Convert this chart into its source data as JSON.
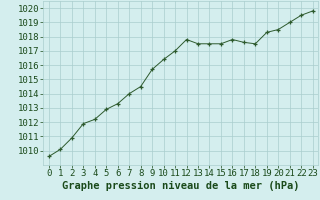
{
  "x": [
    0,
    1,
    2,
    3,
    4,
    5,
    6,
    7,
    8,
    9,
    10,
    11,
    12,
    13,
    14,
    15,
    16,
    17,
    18,
    19,
    20,
    21,
    22,
    23
  ],
  "y": [
    1009.6,
    1010.1,
    1010.9,
    1011.9,
    1012.2,
    1012.9,
    1013.3,
    1014.0,
    1014.5,
    1015.7,
    1016.4,
    1017.0,
    1017.8,
    1017.5,
    1017.5,
    1017.5,
    1017.8,
    1017.6,
    1017.5,
    1018.3,
    1018.5,
    1019.0,
    1019.5,
    1019.8
  ],
  "line_color": "#2d5a2d",
  "marker": "+",
  "background_color": "#d4eeee",
  "grid_color": "#aacece",
  "xlabel": "Graphe pression niveau de la mer (hPa)",
  "xlabel_color": "#1a4a1a",
  "xlabel_fontsize": 7.5,
  "tick_color": "#1a4a1a",
  "tick_fontsize": 6.5,
  "ylim": [
    1009.0,
    1020.5
  ],
  "xlim": [
    -0.5,
    23.5
  ],
  "yticks": [
    1010,
    1011,
    1012,
    1013,
    1014,
    1015,
    1016,
    1017,
    1018,
    1019,
    1020
  ],
  "xticks": [
    0,
    1,
    2,
    3,
    4,
    5,
    6,
    7,
    8,
    9,
    10,
    11,
    12,
    13,
    14,
    15,
    16,
    17,
    18,
    19,
    20,
    21,
    22,
    23
  ]
}
